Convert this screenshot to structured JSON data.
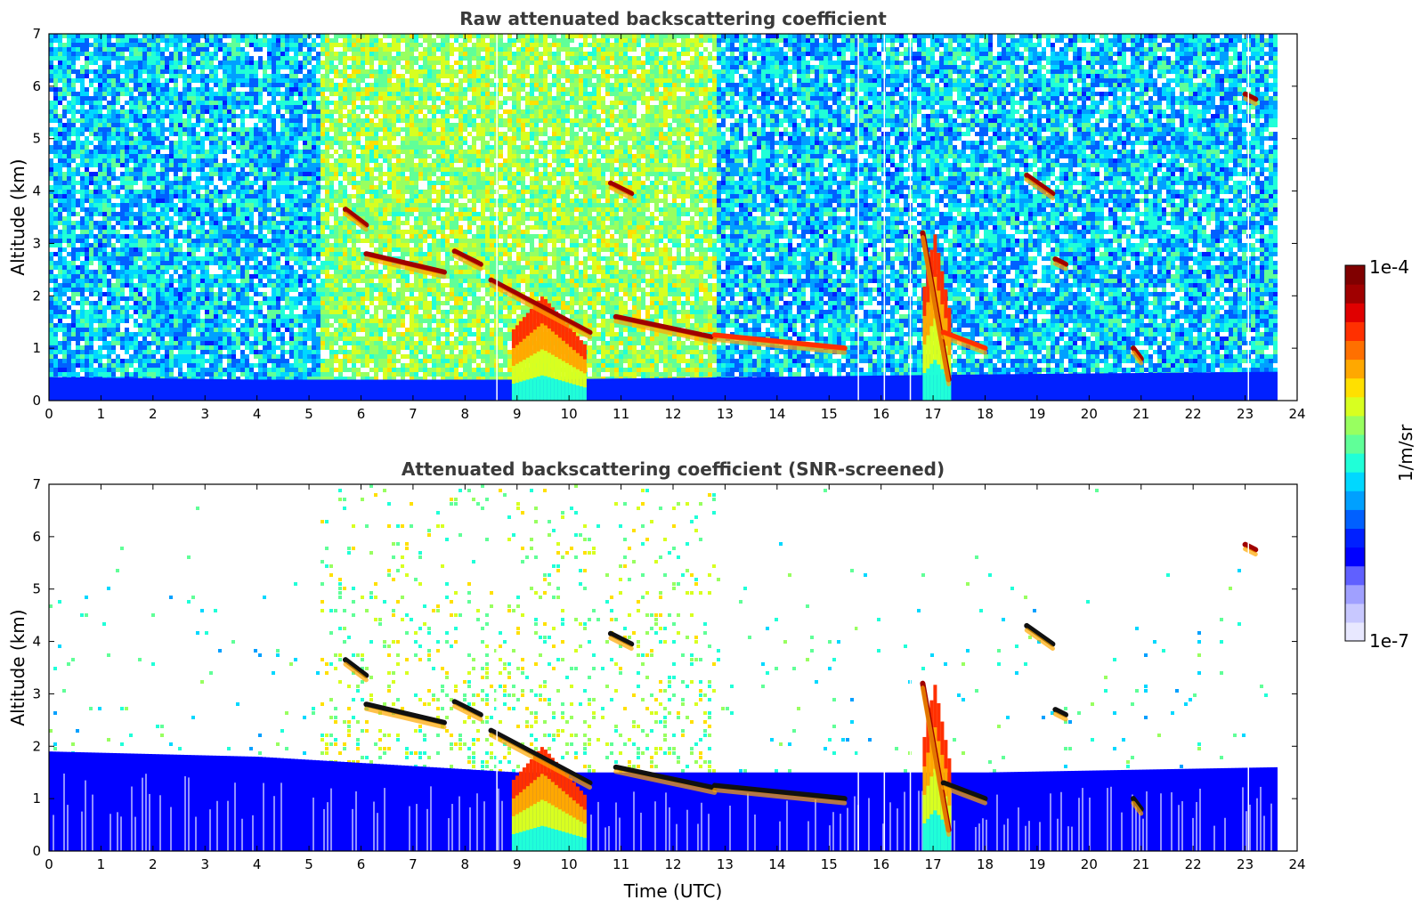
{
  "chart_data": [
    {
      "type": "heatmap",
      "title": "Raw attenuated backscattering coefficient",
      "xlabel": "",
      "ylabel": "Altitude (km)",
      "xlim": [
        0,
        24
      ],
      "ylim": [
        0,
        7
      ],
      "xticks": [
        0,
        1,
        2,
        3,
        4,
        5,
        6,
        7,
        8,
        9,
        10,
        11,
        12,
        13,
        14,
        15,
        16,
        17,
        18,
        19,
        20,
        21,
        22,
        23,
        24
      ],
      "yticks": [
        0,
        1,
        2,
        3,
        4,
        5,
        6,
        7
      ],
      "data_end_time": 23.6,
      "noise": {
        "background": "speckled noise everywhere above the boundary layer",
        "enhanced_noise_window": [
          5.2,
          12.8
        ]
      },
      "boundary_layer": [
        {
          "t": 0,
          "top_km": 0.45
        },
        {
          "t": 4,
          "top_km": 0.4
        },
        {
          "t": 9,
          "top_km": 0.4
        },
        {
          "t": 18,
          "top_km": 0.5
        },
        {
          "t": 23.6,
          "top_km": 0.55
        }
      ],
      "cloud_layers": [
        {
          "t": [
            5.7,
            6.1
          ],
          "alt_km": [
            3.65,
            3.35
          ],
          "level": "high"
        },
        {
          "t": [
            6.1,
            7.6
          ],
          "alt_km": [
            2.8,
            2.45
          ],
          "level": "high"
        },
        {
          "t": [
            7.8,
            8.3
          ],
          "alt_km": [
            2.85,
            2.6
          ],
          "level": "high"
        },
        {
          "t": [
            8.5,
            10.4
          ],
          "alt_km": [
            2.3,
            1.3
          ],
          "level": "high"
        },
        {
          "t": [
            10.8,
            11.2
          ],
          "alt_km": [
            4.15,
            3.95
          ],
          "level": "high"
        },
        {
          "t": [
            10.9,
            12.8
          ],
          "alt_km": [
            1.6,
            1.2
          ],
          "level": "high"
        },
        {
          "t": [
            12.8,
            15.3
          ],
          "alt_km": [
            1.25,
            1.0
          ],
          "level": "mid"
        },
        {
          "t": [
            16.8,
            17.3
          ],
          "alt_km": [
            3.2,
            0.4
          ],
          "level": "high"
        },
        {
          "t": [
            17.2,
            18.0
          ],
          "alt_km": [
            1.3,
            1.0
          ],
          "level": "mid"
        },
        {
          "t": [
            18.8,
            19.3
          ],
          "alt_km": [
            4.3,
            3.95
          ],
          "level": "high"
        },
        {
          "t": [
            19.35,
            19.55
          ],
          "alt_km": [
            2.7,
            2.6
          ],
          "level": "high"
        },
        {
          "t": [
            20.85,
            21.0
          ],
          "alt_km": [
            1.0,
            0.8
          ],
          "level": "high"
        },
        {
          "t": [
            23.0,
            23.2
          ],
          "alt_km": [
            5.85,
            5.75
          ],
          "level": "high"
        }
      ],
      "precipitation_columns": [
        {
          "t": [
            8.9,
            10.3
          ],
          "alt_km": [
            0,
            2.0
          ]
        },
        {
          "t": [
            16.8,
            17.3
          ],
          "alt_km": [
            0,
            3.2
          ]
        }
      ],
      "gaps": [
        8.6,
        15.55,
        16.05,
        16.55,
        23.05
      ]
    },
    {
      "type": "heatmap",
      "title": "Attenuated backscattering coefficient (SNR-screened)",
      "xlabel": "Time (UTC)",
      "ylabel": "Altitude (km)",
      "xlim": [
        0,
        24
      ],
      "ylim": [
        0,
        7
      ],
      "xticks": [
        0,
        1,
        2,
        3,
        4,
        5,
        6,
        7,
        8,
        9,
        10,
        11,
        12,
        13,
        14,
        15,
        16,
        17,
        18,
        19,
        20,
        21,
        22,
        23,
        24
      ],
      "yticks": [
        0,
        1,
        2,
        3,
        4,
        5,
        6,
        7
      ],
      "data_end_time": 23.6,
      "noise": {
        "background": "mostly removed; scattered residual pixels",
        "enhanced_noise_window": [
          5.2,
          12.8
        ]
      },
      "boundary_layer": [
        {
          "t": 0,
          "top_km": 1.9
        },
        {
          "t": 4,
          "top_km": 1.8
        },
        {
          "t": 9,
          "top_km": 1.5
        },
        {
          "t": 18,
          "top_km": 1.5
        },
        {
          "t": 23.6,
          "top_km": 1.6
        }
      ],
      "cloud_layers": [
        {
          "t": [
            5.7,
            6.1
          ],
          "alt_km": [
            3.65,
            3.35
          ],
          "level": "saturated"
        },
        {
          "t": [
            6.1,
            7.6
          ],
          "alt_km": [
            2.8,
            2.45
          ],
          "level": "saturated"
        },
        {
          "t": [
            7.8,
            8.3
          ],
          "alt_km": [
            2.85,
            2.6
          ],
          "level": "saturated"
        },
        {
          "t": [
            8.5,
            10.4
          ],
          "alt_km": [
            2.3,
            1.3
          ],
          "level": "saturated"
        },
        {
          "t": [
            10.8,
            11.2
          ],
          "alt_km": [
            4.15,
            3.95
          ],
          "level": "saturated"
        },
        {
          "t": [
            10.9,
            12.8
          ],
          "alt_km": [
            1.6,
            1.2
          ],
          "level": "saturated"
        },
        {
          "t": [
            12.8,
            15.3
          ],
          "alt_km": [
            1.25,
            1.0
          ],
          "level": "saturated"
        },
        {
          "t": [
            16.8,
            17.3
          ],
          "alt_km": [
            3.2,
            0.4
          ],
          "level": "high"
        },
        {
          "t": [
            17.2,
            18.0
          ],
          "alt_km": [
            1.3,
            1.0
          ],
          "level": "saturated"
        },
        {
          "t": [
            18.8,
            19.3
          ],
          "alt_km": [
            4.3,
            3.95
          ],
          "level": "saturated"
        },
        {
          "t": [
            19.35,
            19.55
          ],
          "alt_km": [
            2.7,
            2.6
          ],
          "level": "saturated"
        },
        {
          "t": [
            20.85,
            21.0
          ],
          "alt_km": [
            1.0,
            0.8
          ],
          "level": "saturated"
        },
        {
          "t": [
            23.0,
            23.2
          ],
          "alt_km": [
            5.85,
            5.75
          ],
          "level": "high"
        }
      ],
      "precipitation_columns": [
        {
          "t": [
            8.9,
            10.3
          ],
          "alt_km": [
            0,
            2.0
          ]
        },
        {
          "t": [
            16.8,
            17.3
          ],
          "alt_km": [
            0,
            3.2
          ]
        }
      ],
      "gaps": [
        8.6,
        15.55,
        16.05,
        16.55,
        23.05
      ]
    }
  ],
  "colorbar": {
    "max_label": "1e-4",
    "min_label": "1e-7",
    "unit_label": "1/m/sr",
    "scale": "log",
    "range": [
      1e-07,
      0.0001
    ],
    "colors": [
      "#e8e8ff",
      "#c8c8ff",
      "#a0a0ff",
      "#6060ff",
      "#0000ff",
      "#0020ff",
      "#0060ff",
      "#00a0ff",
      "#00d8ff",
      "#20ffd8",
      "#60ff98",
      "#98ff60",
      "#d8ff20",
      "#ffe000",
      "#ffa800",
      "#ff7000",
      "#ff3000",
      "#e00000",
      "#a00000",
      "#800000"
    ]
  }
}
